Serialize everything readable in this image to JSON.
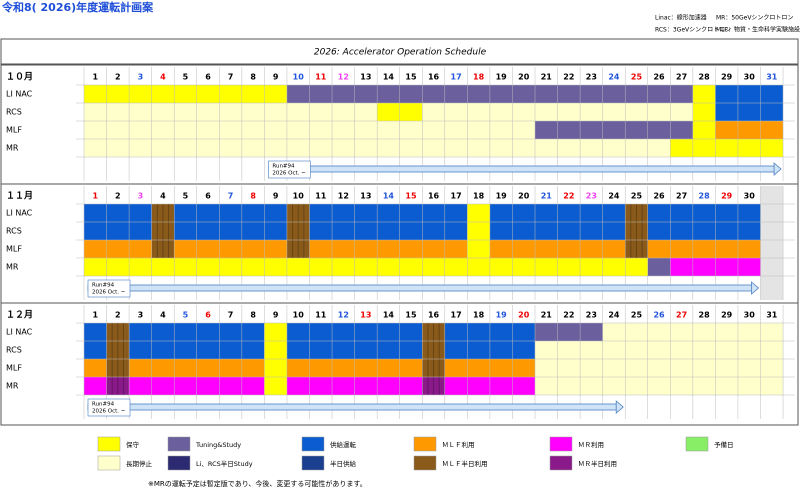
{
  "title": "令和8( 2026)年度運転計画案",
  "abbrev": [
    "Linac：線形加速器",
    "MR：50GeVシンクロトロン",
    "RCS：3GeVシンクロトロン",
    "MLF：物質・生命科学実験施設"
  ],
  "table_title": "2026: Accelerator Operation Schedule",
  "row_labels": [
    "LI NAC",
    "RCS",
    "MLF",
    "MR"
  ],
  "legend": [
    {
      "label": "保守",
      "color": "#ffff00"
    },
    {
      "label": "Tuning&Study",
      "color": "#6b5f9e"
    },
    {
      "label": "供給運転",
      "color": "#0b5cd0"
    },
    {
      "label": "ＭＬＦ利用",
      "color": "#ff9900"
    },
    {
      "label": "ＭＲ利用",
      "color": "#ff00ff"
    },
    {
      "label": "予備日",
      "color": "#88ee66"
    },
    {
      "label": "長期停止",
      "color": "#ffffcc"
    },
    {
      "label": "Li、RCS半日Study",
      "color": "#2c2a70"
    },
    {
      "label": "半日供給",
      "color": "#1a3f8f"
    },
    {
      "label": "ＭＬＦ半日利用",
      "color": "#8a5a1a"
    },
    {
      "label": "ＭＲ半日利用",
      "color": "#8a1a8a"
    }
  ],
  "months": [
    {
      "label": "１０月",
      "days": [
        1,
        2,
        {
          "label": 3,
          "color": "#2255dd"
        },
        {
          "label": 4,
          "color": "#ee0000"
        },
        5,
        6,
        7,
        8,
        9,
        {
          "label": 10,
          "color": "#2255dd"
        },
        {
          "label": 11,
          "color": "#ee0000"
        },
        {
          "label": 12,
          "color": "#ee44ee"
        },
        13,
        14,
        15,
        16,
        {
          "label": 17,
          "color": "#2255dd"
        },
        {
          "label": 18,
          "color": "#ee0000"
        },
        19,
        20,
        21,
        22,
        23,
        {
          "label": 24,
          "color": "#2255dd"
        },
        {
          "label": 25,
          "color": "#ee0000"
        },
        26,
        27,
        28,
        29,
        30,
        {
          "label": 31,
          "color": "#2255dd"
        }
      ],
      "rows": [
        [
          [
            "保守",
            1,
            9
          ],
          [
            "Tuning&Study",
            10,
            27
          ],
          [
            "保守",
            28,
            28
          ],
          [
            "供給運転",
            29,
            31
          ]
        ],
        [
          [
            "長期停止",
            1,
            13
          ],
          [
            "保守",
            14,
            15
          ],
          [
            "長期停止",
            16,
            27
          ],
          [
            "保守",
            28,
            28
          ],
          [
            "供給運転",
            29,
            31
          ]
        ],
        [
          [
            "長期停止",
            1,
            20
          ],
          [
            "Tuning&Study",
            21,
            27
          ],
          [
            "保守",
            28,
            28
          ],
          [
            "ＭＬＦ利用",
            29,
            31
          ]
        ],
        [
          [
            "長期停止",
            1,
            26
          ],
          [
            "保守",
            27,
            31
          ]
        ]
      ],
      "run": {
        "name": "Run#94",
        "date": "2026 Oct. ~",
        "from": 9,
        "to": 31
      }
    },
    {
      "label": "１１月",
      "days": [
        {
          "label": 1,
          "color": "#ee0000"
        },
        2,
        {
          "label": 3,
          "color": "#ee44ee"
        },
        4,
        5,
        6,
        {
          "label": 7,
          "color": "#2255dd"
        },
        {
          "label": 8,
          "color": "#ee0000"
        },
        9,
        10,
        11,
        12,
        13,
        {
          "label": 14,
          "color": "#2255dd"
        },
        {
          "label": 15,
          "color": "#ee0000"
        },
        16,
        17,
        18,
        19,
        20,
        {
          "label": 21,
          "color": "#2255dd"
        },
        {
          "label": 22,
          "color": "#ee0000"
        },
        {
          "label": 23,
          "color": "#ee44ee"
        },
        24,
        25,
        26,
        27,
        {
          "label": 28,
          "color": "#2255dd"
        },
        {
          "label": 29,
          "color": "#ee0000"
        },
        30
      ],
      "rows": [
        [
          [
            "供給運転",
            1,
            3
          ],
          [
            "ＭＬＦ半日利用",
            4,
            4
          ],
          [
            "供給運転",
            5,
            9
          ],
          [
            "ＭＬＦ半日利用",
            10,
            10
          ],
          [
            "供給運転",
            11,
            17
          ],
          [
            "保守",
            18,
            18
          ],
          [
            "供給運転",
            19,
            24
          ],
          [
            "ＭＬＦ半日利用",
            25,
            25
          ],
          [
            "供給運転",
            26,
            30
          ]
        ],
        [
          [
            "供給運転",
            1,
            3
          ],
          [
            "ＭＬＦ半日利用",
            4,
            4
          ],
          [
            "供給運転",
            5,
            9
          ],
          [
            "ＭＬＦ半日利用",
            10,
            10
          ],
          [
            "供給運転",
            11,
            17
          ],
          [
            "保守",
            18,
            18
          ],
          [
            "供給運転",
            19,
            24
          ],
          [
            "ＭＬＦ半日利用",
            25,
            25
          ],
          [
            "供給運転",
            26,
            30
          ]
        ],
        [
          [
            "ＭＬＦ利用",
            1,
            3
          ],
          [
            "ＭＬＦ半日利用",
            4,
            4
          ],
          [
            "ＭＬＦ利用",
            5,
            9
          ],
          [
            "ＭＬＦ半日利用",
            10,
            10
          ],
          [
            "ＭＬＦ利用",
            11,
            17
          ],
          [
            "保守",
            18,
            18
          ],
          [
            "ＭＬＦ利用",
            19,
            24
          ],
          [
            "ＭＬＦ半日利用",
            25,
            25
          ],
          [
            "ＭＬＦ利用",
            26,
            30
          ]
        ],
        [
          [
            "保守",
            1,
            25
          ],
          [
            "Tuning&Study",
            26,
            26
          ],
          [
            "ＭＲ利用",
            27,
            30
          ]
        ]
      ],
      "run": {
        "name": "Run#94",
        "date": "2026 Oct. ~",
        "from": 1,
        "to": 30
      }
    },
    {
      "label": "１２月",
      "days": [
        1,
        2,
        3,
        4,
        {
          "label": 5,
          "color": "#2255dd"
        },
        {
          "label": 6,
          "color": "#ee0000"
        },
        7,
        8,
        9,
        10,
        11,
        {
          "label": 12,
          "color": "#2255dd"
        },
        {
          "label": 13,
          "color": "#ee0000"
        },
        14,
        15,
        16,
        17,
        18,
        {
          "label": 19,
          "color": "#2255dd"
        },
        {
          "label": 20,
          "color": "#ee0000"
        },
        21,
        22,
        23,
        24,
        25,
        {
          "label": 26,
          "color": "#2255dd"
        },
        {
          "label": 27,
          "color": "#ee0000"
        },
        28,
        29,
        30,
        31
      ],
      "rows": [
        [
          [
            "供給運転",
            1,
            1
          ],
          [
            "ＭＬＦ半日利用",
            2,
            2
          ],
          [
            "供給運転",
            3,
            8
          ],
          [
            "保守",
            9,
            9
          ],
          [
            "供給運転",
            10,
            15
          ],
          [
            "ＭＬＦ半日利用",
            16,
            16
          ],
          [
            "供給運転",
            17,
            20
          ],
          [
            "Tuning&Study",
            21,
            23
          ],
          [
            "長期停止",
            24,
            31
          ]
        ],
        [
          [
            "供給運転",
            1,
            1
          ],
          [
            "ＭＬＦ半日利用",
            2,
            2
          ],
          [
            "供給運転",
            3,
            8
          ],
          [
            "保守",
            9,
            9
          ],
          [
            "供給運転",
            10,
            15
          ],
          [
            "ＭＬＦ半日利用",
            16,
            16
          ],
          [
            "供給運転",
            17,
            20
          ],
          [
            "長期停止",
            21,
            31
          ]
        ],
        [
          [
            "ＭＬＦ利用",
            1,
            1
          ],
          [
            "ＭＬＦ半日利用",
            2,
            2
          ],
          [
            "ＭＬＦ利用",
            3,
            8
          ],
          [
            "保守",
            9,
            9
          ],
          [
            "ＭＬＦ利用",
            10,
            15
          ],
          [
            "ＭＬＦ半日利用",
            16,
            16
          ],
          [
            "ＭＬＦ利用",
            17,
            20
          ],
          [
            "長期停止",
            21,
            31
          ]
        ],
        [
          [
            "ＭＲ利用",
            1,
            1
          ],
          [
            "ＭＲ半日利用",
            2,
            2
          ],
          [
            "ＭＲ利用",
            3,
            8
          ],
          [
            "保守",
            9,
            9
          ],
          [
            "ＭＲ利用",
            10,
            15
          ],
          [
            "ＭＲ半日利用",
            16,
            16
          ],
          [
            "ＭＲ利用",
            17,
            20
          ],
          [
            "長期停止",
            21,
            31
          ]
        ]
      ],
      "run": {
        "name": "Run#94",
        "date": "2026 Oct. ~",
        "from": 1,
        "to": 24
      }
    }
  ],
  "note": "※MRの運転予定は暫定版であり、今後、変更する可能性があります。"
}
